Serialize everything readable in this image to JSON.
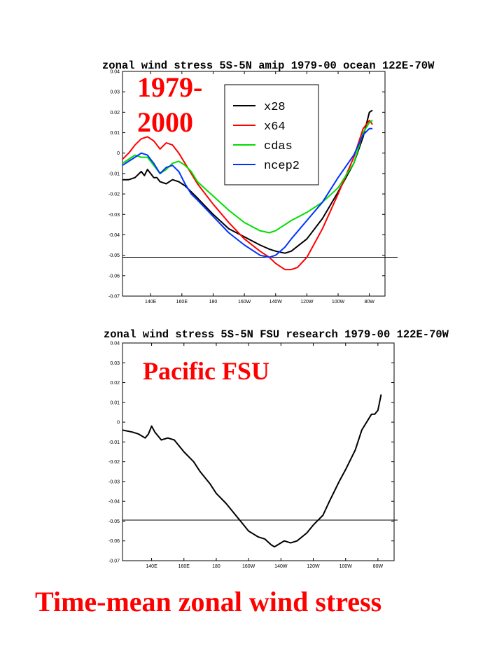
{
  "overlay": {
    "years": "1979-\n2000",
    "pacific": "Pacific FSU",
    "caption": "Time-mean zonal wind stress"
  },
  "colors": {
    "x28": "#000000",
    "x64": "#ff0000",
    "cdas": "#00dd00",
    "ncep2": "#0033ff",
    "annotation": "#ff0000"
  },
  "chart_data": [
    {
      "type": "line",
      "title": "zonal wind stress 5S-5N amip 1979-00 ocean 122E-70W",
      "xlabel": "",
      "ylabel": "",
      "xlim": [
        122,
        290
      ],
      "ylim": [
        -0.07,
        0.04
      ],
      "yticks": [
        0.04,
        0.03,
        0.02,
        0.01,
        0,
        -0.01,
        -0.02,
        -0.03,
        -0.04,
        -0.05,
        -0.06,
        -0.07
      ],
      "ytick_labels": [
        "0.04",
        "0.03",
        "0.02",
        "0.01",
        "0",
        "-0.01",
        "-0.02",
        "-0.03",
        "-0.04",
        "-0.05",
        "-0.06",
        "-0.07"
      ],
      "xticks": [
        140,
        160,
        180,
        200,
        220,
        240,
        260,
        280
      ],
      "xtick_labels": [
        "140E",
        "160E",
        "180",
        "160W",
        "140W",
        "120W",
        "100W",
        "80W"
      ],
      "reference_line": -0.051,
      "legend": {
        "position": "top-right",
        "entries": [
          "x28",
          "x64",
          "cdas",
          "ncep2"
        ]
      },
      "series": [
        {
          "name": "x28",
          "color_key": "x28",
          "x": [
            122,
            126,
            130,
            134,
            136,
            138,
            140,
            142,
            144,
            146,
            150,
            154,
            158,
            162,
            170,
            180,
            190,
            200,
            210,
            216,
            220,
            226,
            230,
            240,
            250,
            260,
            270,
            276,
            280,
            282
          ],
          "y": [
            -0.013,
            -0.013,
            -0.012,
            -0.009,
            -0.011,
            -0.008,
            -0.01,
            -0.012,
            -0.012,
            -0.014,
            -0.015,
            -0.013,
            -0.014,
            -0.016,
            -0.022,
            -0.03,
            -0.037,
            -0.041,
            -0.045,
            -0.047,
            -0.048,
            -0.049,
            -0.048,
            -0.042,
            -0.032,
            -0.019,
            -0.005,
            0.008,
            0.02,
            0.021
          ]
        },
        {
          "name": "x64",
          "color_key": "x64",
          "x": [
            122,
            126,
            130,
            134,
            138,
            142,
            146,
            150,
            154,
            158,
            162,
            166,
            170,
            180,
            190,
            200,
            210,
            216,
            220,
            226,
            230,
            234,
            240,
            250,
            260,
            270,
            276,
            280,
            282
          ],
          "y": [
            -0.003,
            0.0,
            0.004,
            0.007,
            0.008,
            0.006,
            0.002,
            0.005,
            0.004,
            0.0,
            -0.005,
            -0.01,
            -0.015,
            -0.025,
            -0.034,
            -0.042,
            -0.048,
            -0.051,
            -0.054,
            -0.057,
            -0.057,
            -0.056,
            -0.051,
            -0.037,
            -0.02,
            -0.002,
            0.012,
            0.016,
            0.014
          ]
        },
        {
          "name": "cdas",
          "color_key": "cdas",
          "x": [
            122,
            126,
            130,
            134,
            138,
            142,
            146,
            150,
            154,
            158,
            162,
            166,
            170,
            180,
            190,
            200,
            210,
            216,
            220,
            226,
            230,
            240,
            250,
            260,
            270,
            276,
            280,
            282
          ],
          "y": [
            -0.005,
            -0.003,
            -0.001,
            -0.002,
            -0.002,
            -0.006,
            -0.01,
            -0.008,
            -0.005,
            -0.004,
            -0.006,
            -0.009,
            -0.014,
            -0.021,
            -0.028,
            -0.034,
            -0.038,
            -0.039,
            -0.038,
            -0.035,
            -0.033,
            -0.029,
            -0.024,
            -0.017,
            -0.005,
            0.01,
            0.015,
            0.016
          ]
        },
        {
          "name": "ncep2",
          "color_key": "ncep2",
          "x": [
            122,
            126,
            130,
            134,
            138,
            142,
            146,
            150,
            154,
            158,
            162,
            166,
            170,
            180,
            190,
            200,
            210,
            216,
            220,
            226,
            230,
            240,
            250,
            260,
            270,
            276,
            280,
            282
          ],
          "y": [
            -0.006,
            -0.004,
            -0.002,
            0.0,
            -0.001,
            -0.005,
            -0.01,
            -0.007,
            -0.006,
            -0.009,
            -0.015,
            -0.02,
            -0.023,
            -0.031,
            -0.039,
            -0.045,
            -0.05,
            -0.051,
            -0.05,
            -0.046,
            -0.042,
            -0.033,
            -0.024,
            -0.012,
            -0.001,
            0.009,
            0.012,
            0.012
          ]
        }
      ]
    },
    {
      "type": "line",
      "title": "zonal wind stress 5S-5N FSU research 1979-00 122E-70W",
      "xlabel": "",
      "ylabel": "",
      "xlim": [
        122,
        290
      ],
      "ylim": [
        -0.07,
        0.04
      ],
      "yticks": [
        0.04,
        0.03,
        0.02,
        0.01,
        0,
        -0.01,
        -0.02,
        -0.03,
        -0.04,
        -0.05,
        -0.06,
        -0.07
      ],
      "ytick_labels": [
        "0.04",
        "0.03",
        "0.02",
        "0.01",
        "0",
        "-0.01",
        "-0.02",
        "-0.03",
        "-0.04",
        "-0.05",
        "-0.06",
        "-0.07"
      ],
      "xticks": [
        140,
        160,
        180,
        200,
        220,
        240,
        260,
        280
      ],
      "xtick_labels": [
        "140E",
        "160E",
        "180",
        "160W",
        "140W",
        "120W",
        "100W",
        "80W"
      ],
      "reference_line": -0.0495,
      "series": [
        {
          "color_key": "x28",
          "x": [
            122,
            128,
            132,
            136,
            138,
            140,
            142,
            146,
            150,
            154,
            160,
            166,
            170,
            176,
            180,
            186,
            190,
            196,
            200,
            206,
            210,
            214,
            216,
            218,
            220,
            222,
            226,
            230,
            236,
            240,
            246,
            250,
            256,
            260,
            266,
            270,
            276,
            278,
            280,
            282
          ],
          "y": [
            -0.004,
            -0.005,
            -0.006,
            -0.008,
            -0.006,
            -0.002,
            -0.005,
            -0.009,
            -0.008,
            -0.009,
            -0.015,
            -0.02,
            -0.025,
            -0.031,
            -0.036,
            -0.041,
            -0.045,
            -0.051,
            -0.055,
            -0.058,
            -0.059,
            -0.062,
            -0.063,
            -0.062,
            -0.061,
            -0.06,
            -0.061,
            -0.06,
            -0.056,
            -0.052,
            -0.047,
            -0.04,
            -0.03,
            -0.024,
            -0.014,
            -0.004,
            0.004,
            0.004,
            0.006,
            0.014
          ]
        }
      ]
    }
  ]
}
